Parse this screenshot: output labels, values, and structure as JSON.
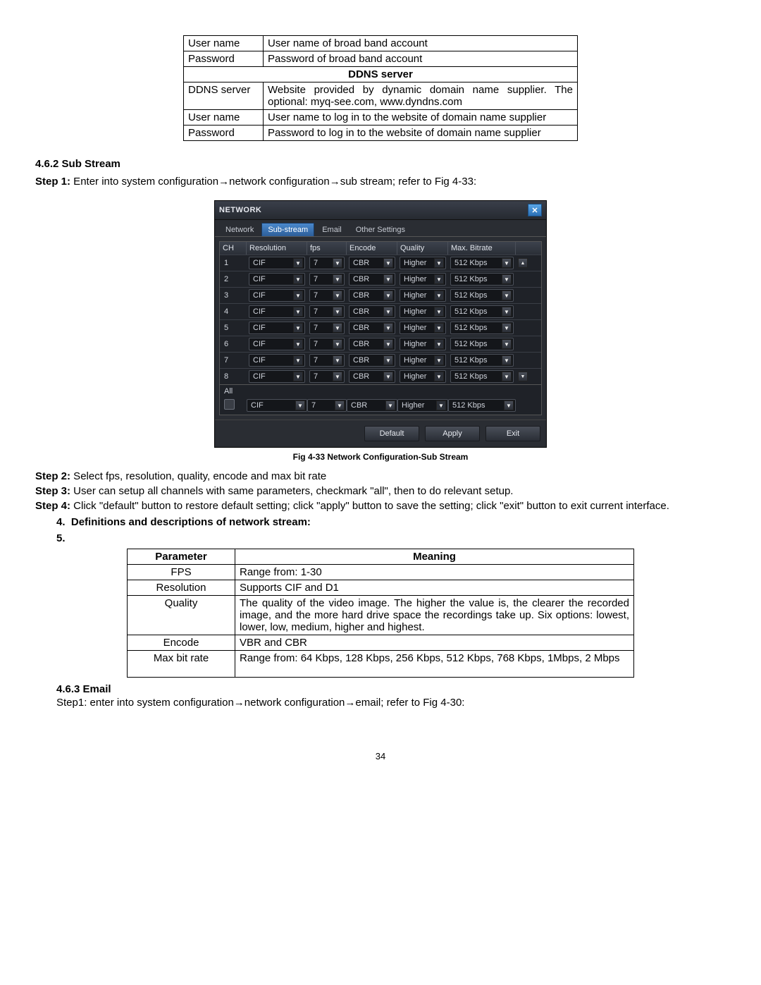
{
  "ddns_table": {
    "rows": [
      {
        "param": "User name",
        "meaning": "User name of broad band account"
      },
      {
        "param": "Password",
        "meaning": "Password of broad band account"
      }
    ],
    "section_header": "DDNS server",
    "rows2": [
      {
        "param": "DDNS server",
        "meaning": "Website provided by dynamic domain name supplier. The optional: myq-see.com, www.dyndns.com"
      },
      {
        "param": "User name",
        "meaning": "User name to log in to the website of domain name supplier"
      },
      {
        "param": "Password",
        "meaning": "Password to log in to the website of domain name supplier"
      }
    ]
  },
  "section_462": "4.6.2 Sub Stream",
  "step1_label": "Step 1:",
  "step1_text": " Enter into system configuration→network configuration→sub stream; refer to Fig 4-33:",
  "dialog": {
    "title": "NETWORK",
    "tabs": [
      "Network",
      "Sub-stream",
      "Email",
      "Other Settings"
    ],
    "active_tab_index": 1,
    "columns": [
      "CH",
      "Resolution",
      "fps",
      "Encode",
      "Quality",
      "Max. Bitrate"
    ],
    "rows": [
      {
        "ch": "1",
        "res": "CIF",
        "fps": "7",
        "enc": "CBR",
        "qual": "Higher",
        "bit": "512 Kbps"
      },
      {
        "ch": "2",
        "res": "CIF",
        "fps": "7",
        "enc": "CBR",
        "qual": "Higher",
        "bit": "512 Kbps"
      },
      {
        "ch": "3",
        "res": "CIF",
        "fps": "7",
        "enc": "CBR",
        "qual": "Higher",
        "bit": "512 Kbps"
      },
      {
        "ch": "4",
        "res": "CIF",
        "fps": "7",
        "enc": "CBR",
        "qual": "Higher",
        "bit": "512 Kbps"
      },
      {
        "ch": "5",
        "res": "CIF",
        "fps": "7",
        "enc": "CBR",
        "qual": "Higher",
        "bit": "512 Kbps"
      },
      {
        "ch": "6",
        "res": "CIF",
        "fps": "7",
        "enc": "CBR",
        "qual": "Higher",
        "bit": "512 Kbps"
      },
      {
        "ch": "7",
        "res": "CIF",
        "fps": "7",
        "enc": "CBR",
        "qual": "Higher",
        "bit": "512 Kbps"
      },
      {
        "ch": "8",
        "res": "CIF",
        "fps": "7",
        "enc": "CBR",
        "qual": "Higher",
        "bit": "512 Kbps"
      }
    ],
    "all_label": "All",
    "all_row": {
      "res": "CIF",
      "fps": "7",
      "enc": "CBR",
      "qual": "Higher",
      "bit": "512 Kbps"
    },
    "buttons": {
      "default": "Default",
      "apply": "Apply",
      "exit": "Exit"
    }
  },
  "fig_caption": "Fig 4-33 Network Configuration-Sub Stream",
  "step2_label": "Step 2:",
  "step2_text": " Select fps, resolution, quality, encode and max bit rate",
  "step3_label": "Step 3:",
  "step3_text": " User can setup all channels with same parameters, checkmark \"all\", then to do relevant setup.",
  "step4_label": "Step 4:",
  "step4_text": " Click \"default\" button to restore default setting; click \"apply\" button to save the setting; click \"exit\" button to exit current interface.",
  "list4": "4.",
  "list4_text": "Definitions and descriptions of network stream:",
  "list5": "5.",
  "param_table": {
    "headers": [
      "Parameter",
      "Meaning"
    ],
    "rows": [
      {
        "p": "FPS",
        "m": "Range from: 1-30"
      },
      {
        "p": "Resolution",
        "m": "Supports CIF and D1"
      },
      {
        "p": "Quality",
        "m": "The quality of the video image. The higher the value is, the clearer the recorded image, and the more hard drive space the recordings take up. Six options: lowest, lower, low, medium, higher and highest."
      },
      {
        "p": "Encode",
        "m": "VBR and CBR"
      },
      {
        "p": "Max bit rate",
        "m": "Range from: 64 Kbps, 128 Kbps, 256 Kbps, 512 Kbps, 768 Kbps, 1Mbps, 2 Mbps"
      }
    ]
  },
  "section_463": "4.6.3  Email",
  "step463": "Step1: enter into system configuration→network configuration→email; refer to Fig 4-30:",
  "page_number": "34"
}
